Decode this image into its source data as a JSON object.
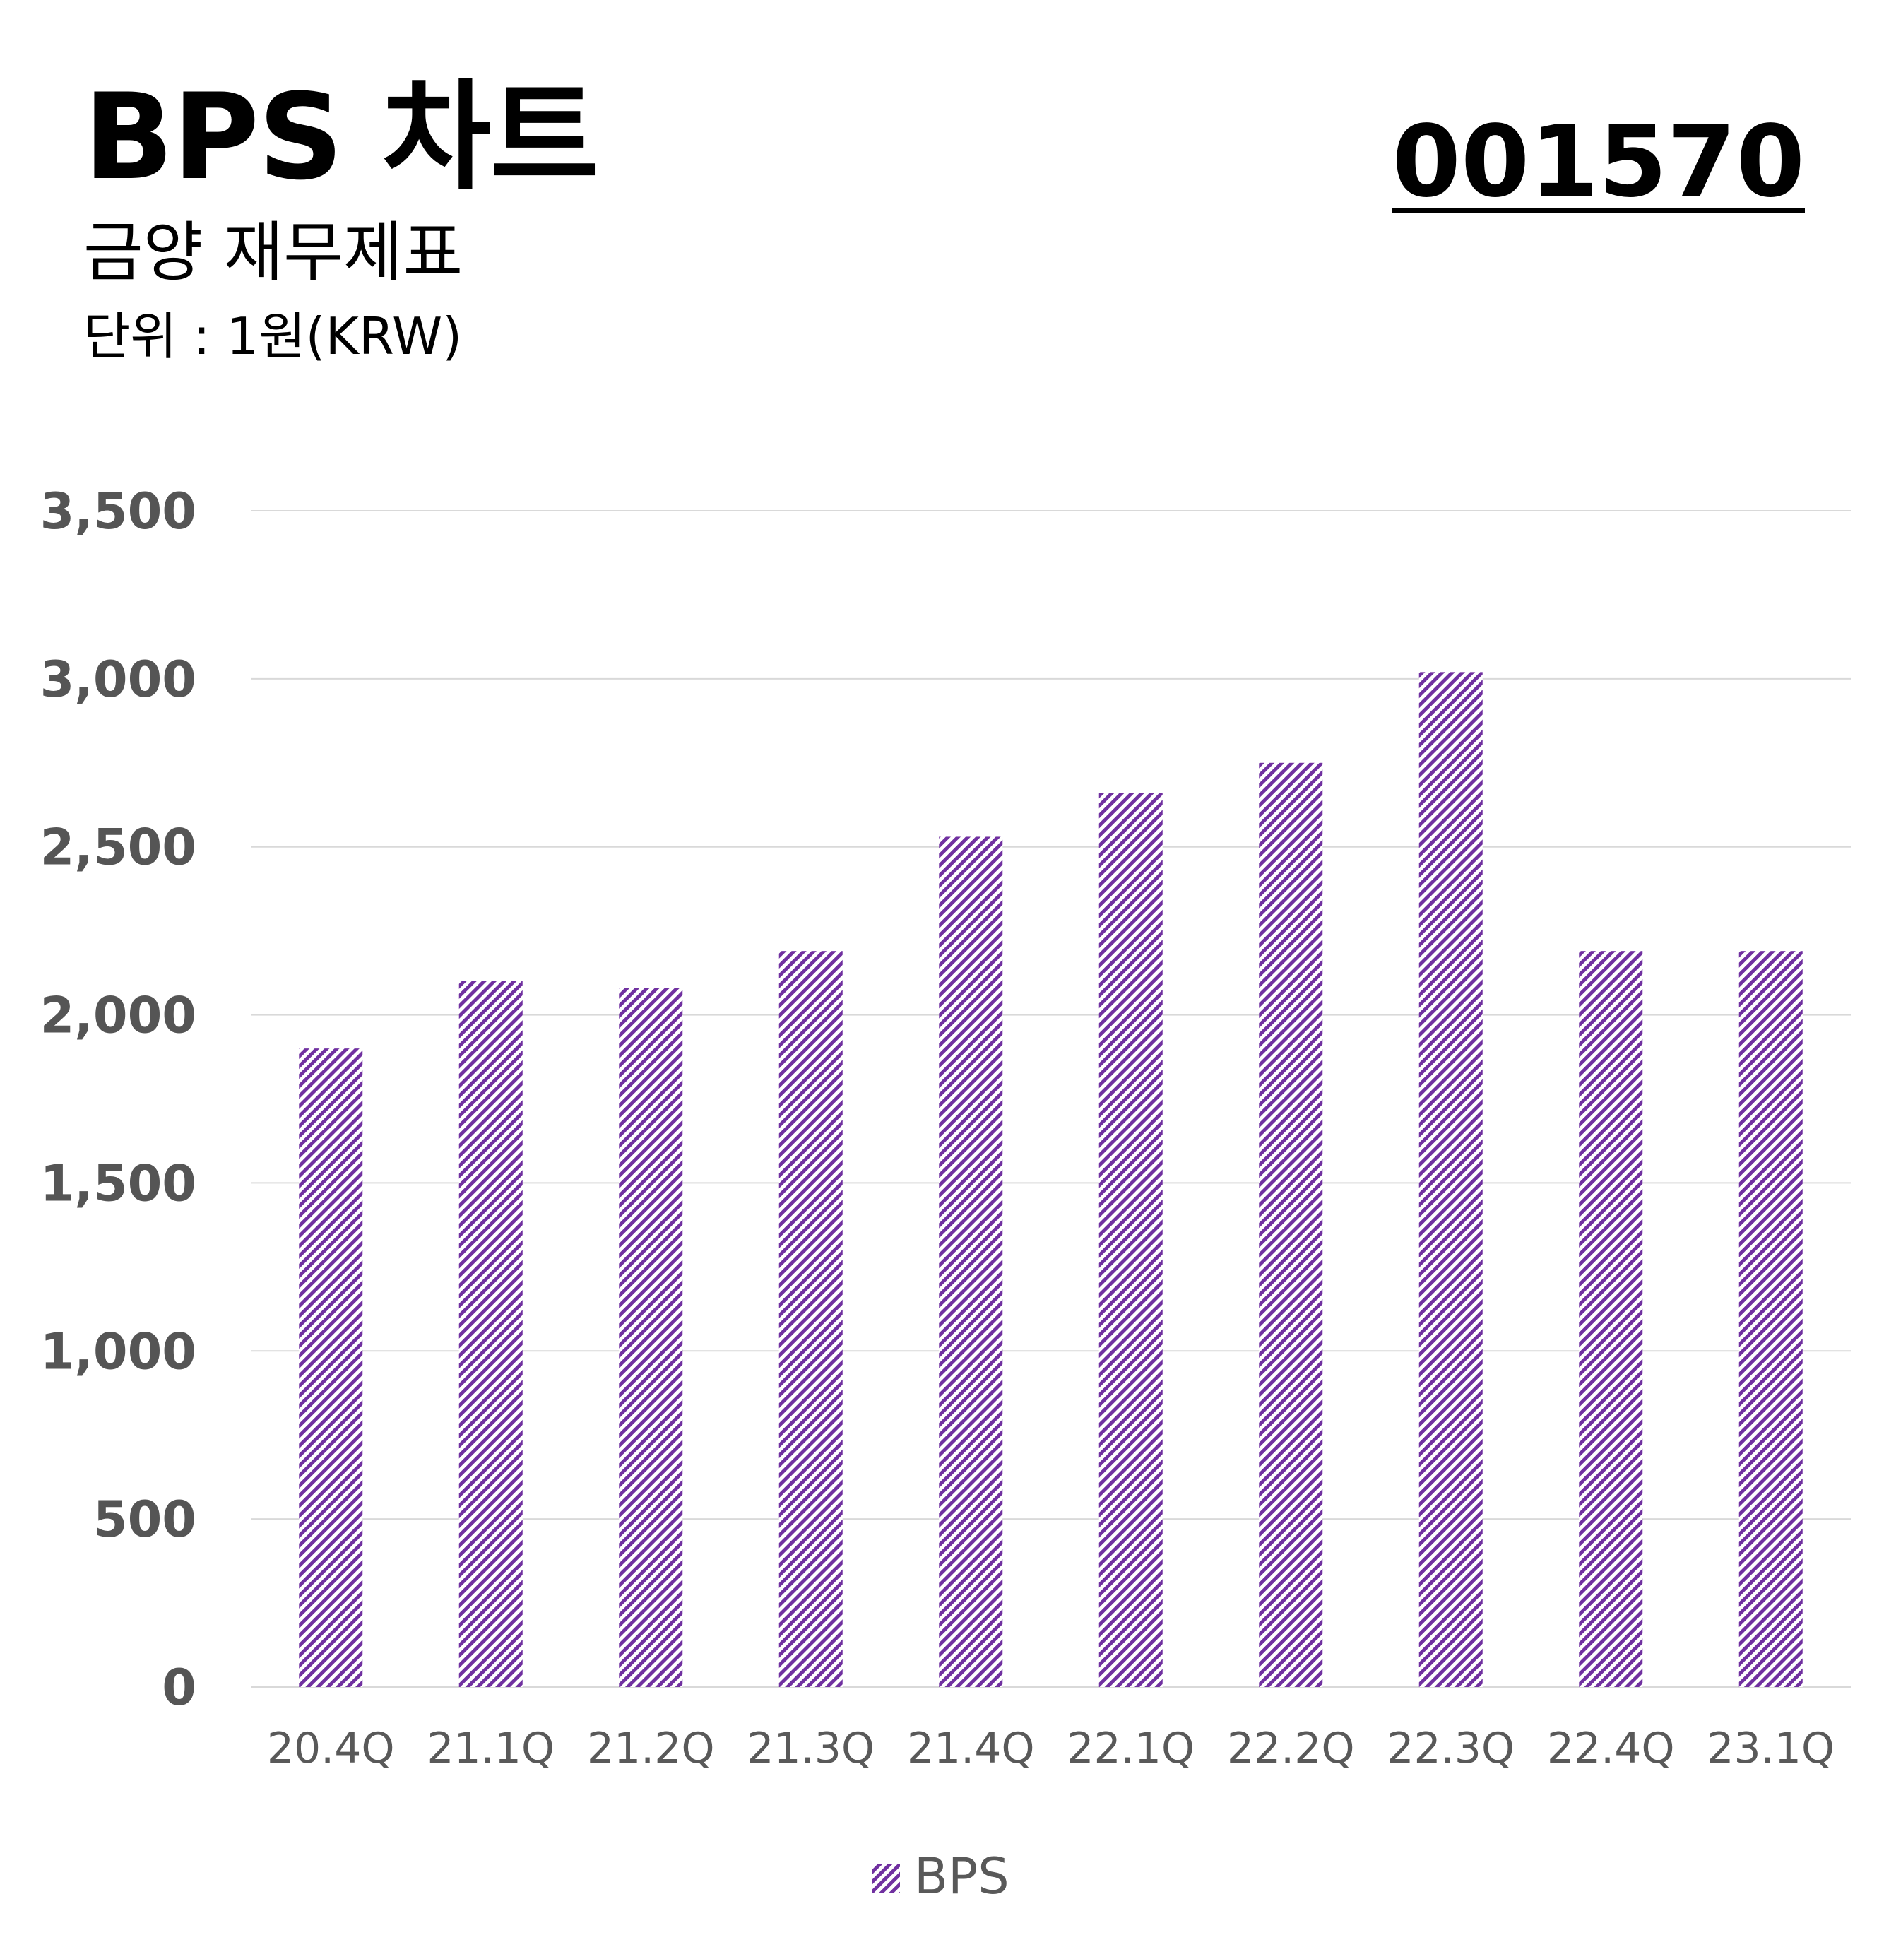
{
  "header": {
    "title": "BPS 차트",
    "subtitle": "금양 재무제표",
    "unit": "단위 : 1원(KRW)",
    "code": "001570"
  },
  "colors": {
    "bar": "#7030a0",
    "grid": "#d9d9d9",
    "axis_text": "#595959"
  },
  "chart_data": {
    "type": "bar",
    "categories": [
      "20.4Q",
      "21.1Q",
      "21.2Q",
      "21.3Q",
      "21.4Q",
      "22.1Q",
      "22.2Q",
      "22.3Q",
      "22.4Q",
      "23.1Q"
    ],
    "series": [
      {
        "name": "BPS",
        "values": [
          1900,
          2100,
          2080,
          2190,
          2530,
          2660,
          2750,
          3020,
          2190,
          2190
        ]
      }
    ],
    "ylim": [
      0,
      3500
    ],
    "yticks": [
      0,
      500,
      1000,
      1500,
      2000,
      2500,
      3000,
      3500
    ],
    "ytick_labels": [
      "0",
      "500",
      "1,000",
      "1,500",
      "2,000",
      "2,500",
      "3,000",
      "3,500"
    ],
    "bar_fill": "diagonal-hatch",
    "grid": true,
    "legend_position": "bottom-center"
  }
}
